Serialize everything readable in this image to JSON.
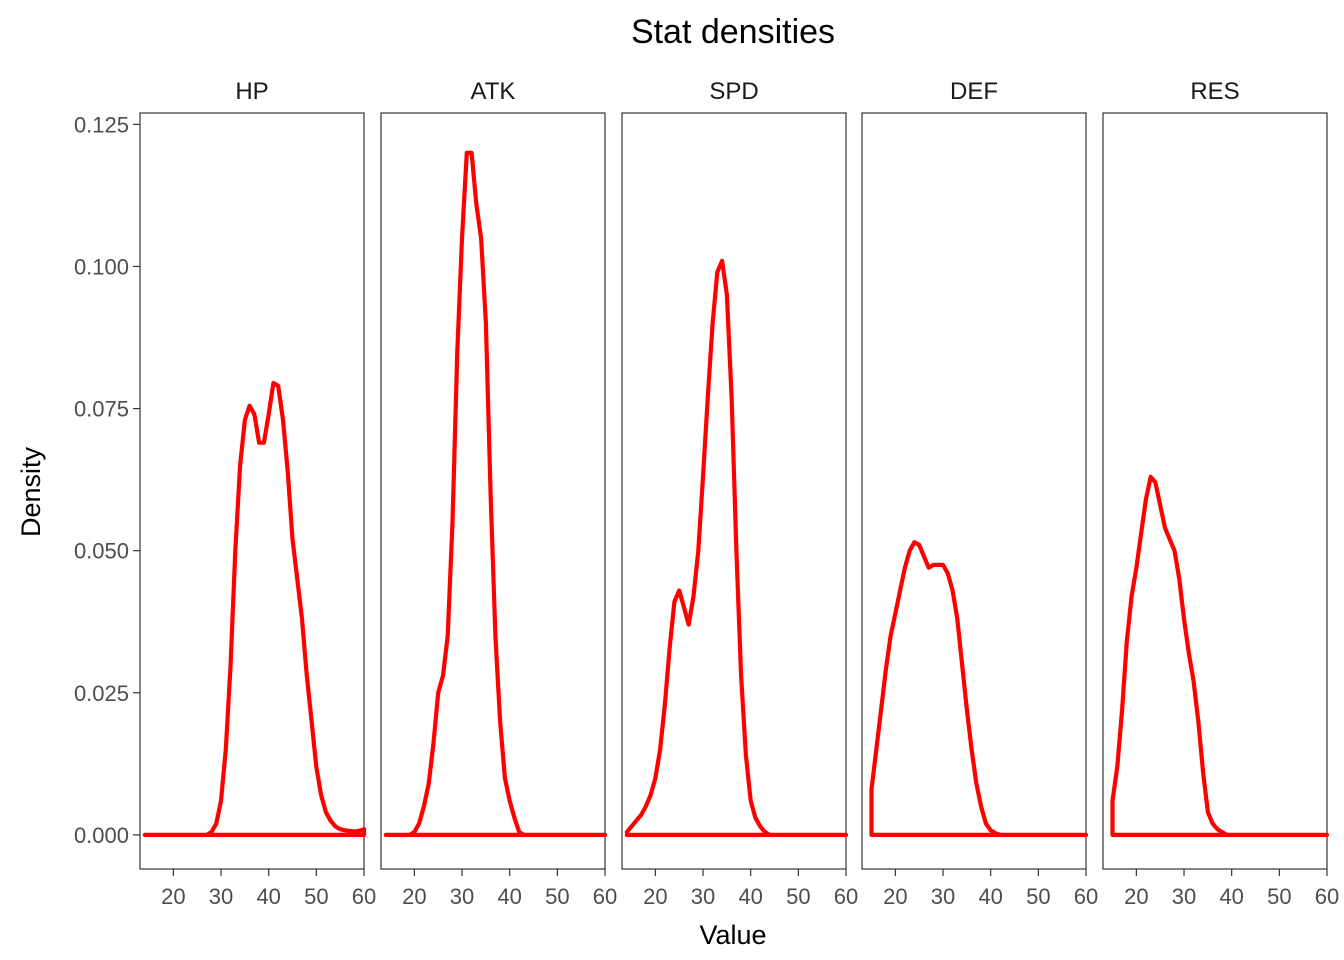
{
  "chart_data": {
    "type": "line",
    "title": "Stat densities",
    "xlabel": "Value",
    "ylabel": "Density",
    "xlim": [
      13,
      60
    ],
    "ylim": [
      -0.006,
      0.127
    ],
    "x_ticks": [
      20,
      30,
      40,
      50,
      60
    ],
    "y_ticks": [
      0.0,
      0.025,
      0.05,
      0.075,
      0.1,
      0.125
    ],
    "y_tick_labels": [
      "0.000",
      "0.025",
      "0.050",
      "0.075",
      "0.100",
      "0.125"
    ],
    "line_color": "#ff0000",
    "grid": false,
    "facets": [
      {
        "name": "HP",
        "points": [
          [
            14,
            0
          ],
          [
            27,
            0
          ],
          [
            28,
            0.0005
          ],
          [
            29,
            0.002
          ],
          [
            30,
            0.006
          ],
          [
            31,
            0.015
          ],
          [
            32,
            0.03
          ],
          [
            33,
            0.05
          ],
          [
            34,
            0.065
          ],
          [
            35,
            0.073
          ],
          [
            36,
            0.0755
          ],
          [
            37,
            0.074
          ],
          [
            38,
            0.069
          ],
          [
            39,
            0.069
          ],
          [
            40,
            0.074
          ],
          [
            41,
            0.0795
          ],
          [
            42,
            0.079
          ],
          [
            43,
            0.073
          ],
          [
            44,
            0.064
          ],
          [
            45,
            0.052
          ],
          [
            46,
            0.045
          ],
          [
            47,
            0.038
          ],
          [
            48,
            0.028
          ],
          [
            49,
            0.02
          ],
          [
            50,
            0.012
          ],
          [
            51,
            0.007
          ],
          [
            52,
            0.004
          ],
          [
            53,
            0.0025
          ],
          [
            54,
            0.0015
          ],
          [
            55,
            0.001
          ],
          [
            56,
            0.0008
          ],
          [
            57,
            0.0007
          ],
          [
            58,
            0.0006
          ],
          [
            59,
            0.0007
          ],
          [
            60,
            0.001
          ],
          [
            60,
            0
          ],
          [
            14,
            0
          ]
        ]
      },
      {
        "name": "ATK",
        "points": [
          [
            14,
            0
          ],
          [
            19,
            0
          ],
          [
            20,
            0.0005
          ],
          [
            21,
            0.002
          ],
          [
            22,
            0.005
          ],
          [
            23,
            0.009
          ],
          [
            24,
            0.016
          ],
          [
            25,
            0.025
          ],
          [
            26,
            0.028
          ],
          [
            27,
            0.035
          ],
          [
            28,
            0.055
          ],
          [
            29,
            0.085
          ],
          [
            30,
            0.105
          ],
          [
            31,
            0.12
          ],
          [
            32,
            0.12
          ],
          [
            33,
            0.111
          ],
          [
            34,
            0.105
          ],
          [
            35,
            0.09
          ],
          [
            36,
            0.06
          ],
          [
            37,
            0.035
          ],
          [
            38,
            0.02
          ],
          [
            39,
            0.01
          ],
          [
            40,
            0.006
          ],
          [
            41,
            0.003
          ],
          [
            42,
            0.0005
          ],
          [
            43,
            0
          ],
          [
            60,
            0
          ],
          [
            14,
            0
          ]
        ]
      },
      {
        "name": "SPD",
        "points": [
          [
            14,
            0.0005
          ],
          [
            15,
            0.0015
          ],
          [
            16,
            0.0025
          ],
          [
            17,
            0.0035
          ],
          [
            18,
            0.005
          ],
          [
            19,
            0.007
          ],
          [
            20,
            0.01
          ],
          [
            21,
            0.015
          ],
          [
            22,
            0.023
          ],
          [
            23,
            0.033
          ],
          [
            24,
            0.041
          ],
          [
            25,
            0.043
          ],
          [
            26,
            0.04
          ],
          [
            27,
            0.037
          ],
          [
            28,
            0.042
          ],
          [
            29,
            0.05
          ],
          [
            30,
            0.063
          ],
          [
            31,
            0.077
          ],
          [
            32,
            0.09
          ],
          [
            33,
            0.099
          ],
          [
            34,
            0.101
          ],
          [
            35,
            0.095
          ],
          [
            36,
            0.077
          ],
          [
            37,
            0.05
          ],
          [
            38,
            0.028
          ],
          [
            39,
            0.014
          ],
          [
            40,
            0.006
          ],
          [
            41,
            0.003
          ],
          [
            42,
            0.0015
          ],
          [
            43,
            0.0005
          ],
          [
            44,
            0
          ],
          [
            60,
            0
          ],
          [
            14,
            0
          ]
        ]
      },
      {
        "name": "DEF",
        "points": [
          [
            15,
            0
          ],
          [
            15,
            0.008
          ],
          [
            16,
            0.015
          ],
          [
            17,
            0.022
          ],
          [
            18,
            0.029
          ],
          [
            19,
            0.035
          ],
          [
            20,
            0.039
          ],
          [
            21,
            0.043
          ],
          [
            22,
            0.047
          ],
          [
            23,
            0.05
          ],
          [
            24,
            0.0515
          ],
          [
            25,
            0.051
          ],
          [
            26,
            0.049
          ],
          [
            27,
            0.047
          ],
          [
            28,
            0.0475
          ],
          [
            29,
            0.0475
          ],
          [
            30,
            0.0475
          ],
          [
            31,
            0.046
          ],
          [
            32,
            0.043
          ],
          [
            33,
            0.038
          ],
          [
            34,
            0.03
          ],
          [
            35,
            0.022
          ],
          [
            36,
            0.015
          ],
          [
            37,
            0.009
          ],
          [
            38,
            0.005
          ],
          [
            39,
            0.002
          ],
          [
            40,
            0.0008
          ],
          [
            41,
            0.0003
          ],
          [
            42,
            0
          ],
          [
            60,
            0
          ],
          [
            15,
            0
          ]
        ]
      },
      {
        "name": "RES",
        "points": [
          [
            15,
            0
          ],
          [
            15,
            0.006
          ],
          [
            16,
            0.012
          ],
          [
            17,
            0.022
          ],
          [
            18,
            0.034
          ],
          [
            19,
            0.042
          ],
          [
            20,
            0.047
          ],
          [
            21,
            0.053
          ],
          [
            22,
            0.059
          ],
          [
            23,
            0.063
          ],
          [
            24,
            0.062
          ],
          [
            25,
            0.058
          ],
          [
            26,
            0.054
          ],
          [
            27,
            0.052
          ],
          [
            28,
            0.05
          ],
          [
            29,
            0.045
          ],
          [
            30,
            0.038
          ],
          [
            31,
            0.032
          ],
          [
            32,
            0.027
          ],
          [
            33,
            0.02
          ],
          [
            34,
            0.011
          ],
          [
            35,
            0.004
          ],
          [
            36,
            0.002
          ],
          [
            37,
            0.001
          ],
          [
            38,
            0.0005
          ],
          [
            39,
            0
          ],
          [
            60,
            0
          ],
          [
            15,
            0
          ]
        ]
      }
    ]
  }
}
